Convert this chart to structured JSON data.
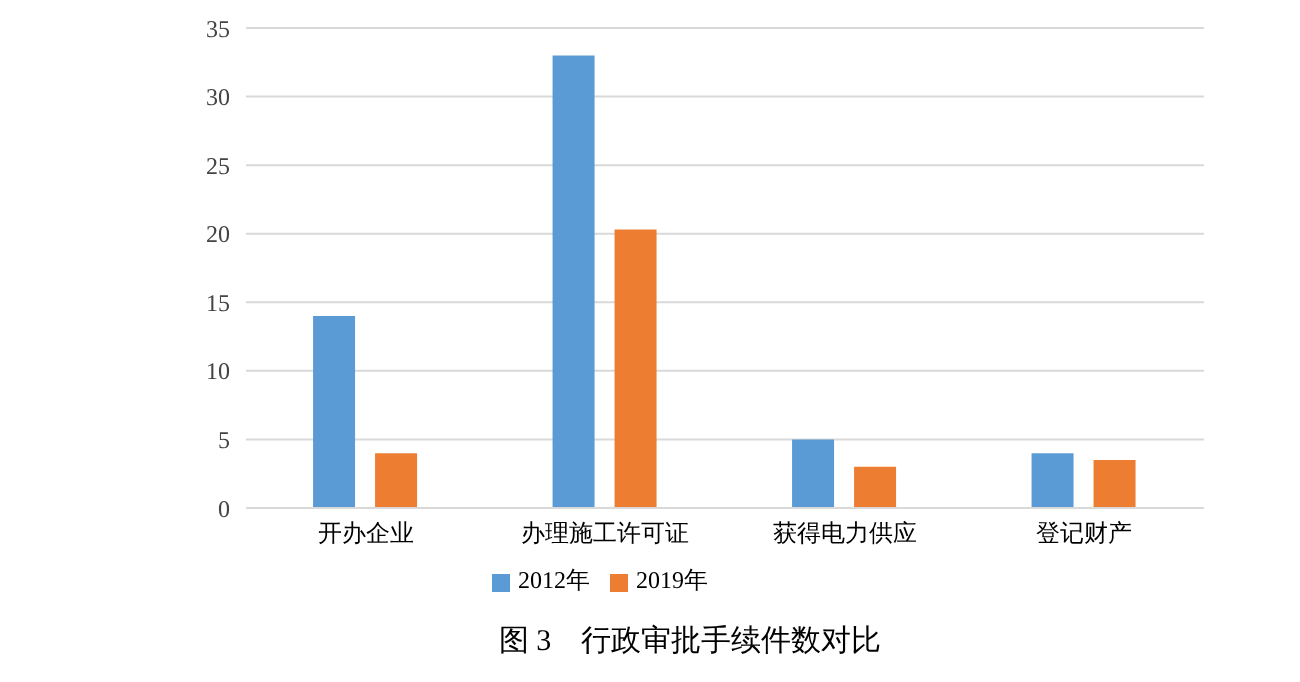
{
  "chart_data": {
    "type": "bar",
    "title": "图 3　行政审批手续件数对比",
    "categories": [
      "开办企业",
      "办理施工许可证",
      "获得电力供应",
      "登记财产"
    ],
    "series": [
      {
        "name": "2012年",
        "color": "#5b9bd5",
        "values": [
          14,
          33,
          5,
          4
        ]
      },
      {
        "name": "2019年",
        "color": "#ed7d31",
        "values": [
          4,
          20.3,
          3,
          3.5
        ]
      }
    ],
    "ylim": [
      0,
      35
    ],
    "yticks": [
      0,
      5,
      10,
      15,
      20,
      25,
      30,
      35
    ],
    "grid": "y",
    "legend": "bottom"
  }
}
